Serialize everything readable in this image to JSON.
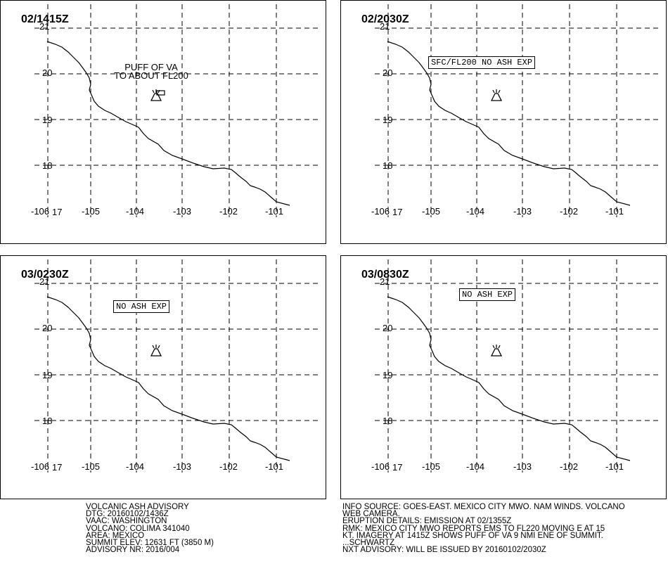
{
  "panels": [
    {
      "title": "02/1415Z",
      "annotation_lines": [
        "PUFF OF VA",
        "TO ABOUT FL200"
      ],
      "boxed": false,
      "ash_area": true
    },
    {
      "title": "02/2030Z",
      "annotation_lines": [
        "SFC/FL200 NO ASH EXP"
      ],
      "boxed": true,
      "ash_area": false
    },
    {
      "title": "03/0230Z",
      "annotation_lines": [
        "NO ASH EXP"
      ],
      "boxed": true,
      "ash_area": false
    },
    {
      "title": "03/0830Z",
      "annotation_lines": [
        "NO ASH EXP"
      ],
      "boxed": true,
      "ash_area": false
    }
  ],
  "map": {
    "lat_labels": [
      "21",
      "20",
      "19",
      "18",
      "17"
    ],
    "lon_labels": [
      "-106",
      "-105",
      "-104",
      "-103",
      "-102",
      "-101"
    ],
    "volcano_icon": "volcano-icon",
    "colors": {
      "line": "#000000",
      "background": "#ffffff"
    }
  },
  "advisory_left": {
    "lines": [
      "VOLCANIC ASH ADVISORY",
      "DTG: 20160102/1436Z",
      "VAAC: WASHINGTON",
      "VOLCANO: COLIMA 341040",
      "AREA: MEXICO",
      "SUMMIT ELEV: 12631 FT (3850 M)",
      "ADVISORY NR: 2016/004"
    ]
  },
  "advisory_right": {
    "lines": [
      "INFO SOURCE: GOES-EAST. MEXICO CITY MWO. NAM WINDS. VOLCANO",
      "WEB CAMERA.",
      "ERUPTION DETAILS: EMISSION AT 02/1355Z",
      "RMK: MEXICO CITY MWO REPORTS EMS TO FL220 MOVING E AT 15",
      "KT. IMAGERY AT 1415Z SHOWS PUFF OF VA 9 NMI ENE OF SUMMIT.",
      "...SCHWARTZ",
      "NXT ADVISORY: WILL BE ISSUED BY 20160102/2030Z"
    ]
  }
}
